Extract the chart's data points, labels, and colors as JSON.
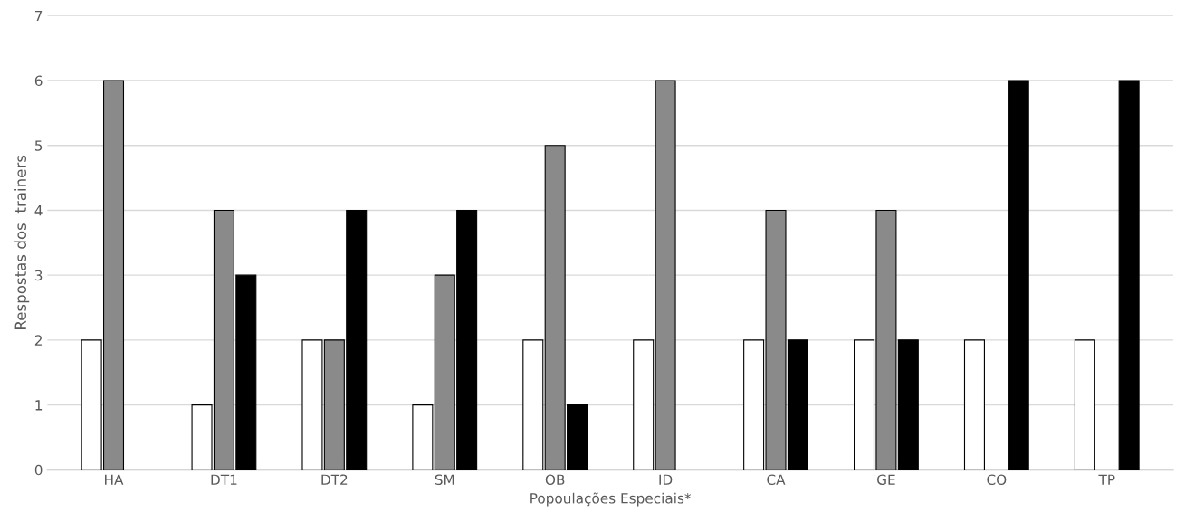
{
  "chart_data": {
    "type": "bar",
    "xlabel": "Popoulações Especiais*",
    "ylabel": "Respostas dos  trainers",
    "categories": [
      "HA",
      "DT1",
      "DT2",
      "SM",
      "OB",
      "ID",
      "CA",
      "GE",
      "CO",
      "TP"
    ],
    "series": [
      {
        "color": "#ffffff",
        "values": [
          2,
          1,
          2,
          1,
          2,
          2,
          2,
          2,
          2,
          2
        ]
      },
      {
        "color": "#8a8a8a",
        "values": [
          6,
          4,
          2,
          3,
          5,
          6,
          4,
          4,
          null,
          null
        ]
      },
      {
        "color": "#000000",
        "values": [
          null,
          3,
          4,
          4,
          1,
          null,
          2,
          2,
          6,
          6
        ]
      }
    ],
    "ylim": [
      0,
      7
    ],
    "yticks": [
      0,
      1,
      2,
      3,
      4,
      5,
      6,
      7
    ],
    "grid": "y",
    "legend": false
  }
}
